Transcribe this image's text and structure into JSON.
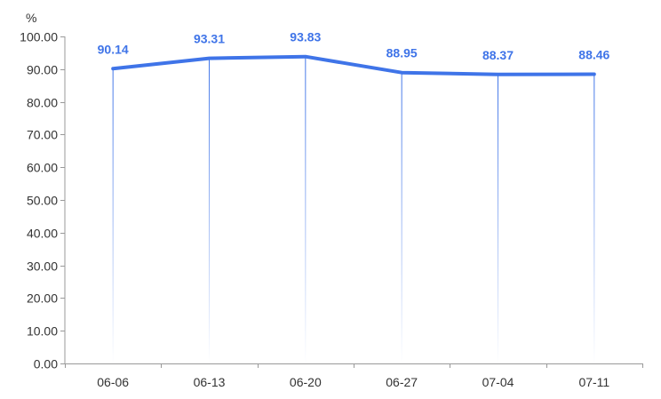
{
  "chart_data": {
    "type": "line",
    "unit": "%",
    "categories": [
      "06-06",
      "06-13",
      "06-20",
      "06-27",
      "07-04",
      "07-11"
    ],
    "series": [
      {
        "values": [
          90.14,
          93.31,
          93.83,
          88.95,
          88.37,
          88.46
        ]
      }
    ],
    "data_labels": [
      "90.14",
      "93.31",
      "93.83",
      "88.95",
      "88.37",
      "88.46"
    ],
    "y_ticks": [
      "0.00",
      "10.00",
      "20.00",
      "30.00",
      "40.00",
      "50.00",
      "60.00",
      "70.00",
      "80.00",
      "90.00",
      "100.00"
    ],
    "ylim": [
      0,
      100
    ],
    "grid": false,
    "line_color": "#3f74e8",
    "label_color": "#3f74e8",
    "axis_color": "#999999",
    "text_color": "#333333"
  }
}
